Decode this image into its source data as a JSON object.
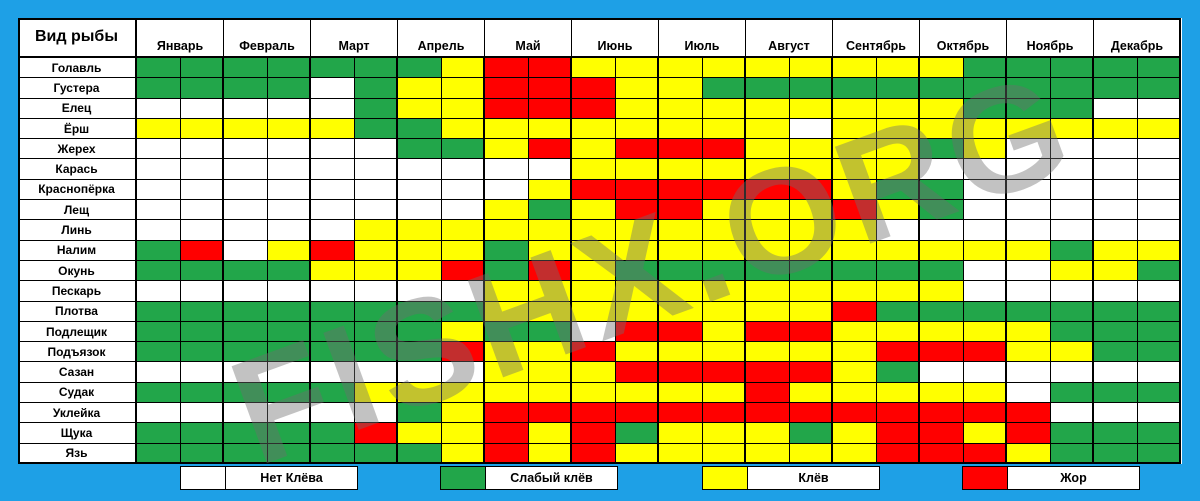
{
  "header": "Вид рыбы",
  "months": [
    "Январь",
    "Февраль",
    "Март",
    "Апрель",
    "Май",
    "Июнь",
    "Июль",
    "Август",
    "Сентябрь",
    "Октябрь",
    "Ноябрь",
    "Декабрь"
  ],
  "watermark": "FISHX.ORG",
  "legend": [
    {
      "label": "Нет Клёва",
      "color": "#ffffff"
    },
    {
      "label": "Слабый клёв",
      "color": "#22a64a"
    },
    {
      "label": "Клёв",
      "color": "#ffff00"
    },
    {
      "label": "Жор",
      "color": "#ff0000"
    }
  ],
  "chart_data": {
    "type": "heatmap",
    "columns": [
      "Январь",
      "Январь",
      "Февраль",
      "Февраль",
      "Март",
      "Март",
      "Апрель",
      "Апрель",
      "Май",
      "Май",
      "Июнь",
      "Июнь",
      "Июль",
      "Июль",
      "Август",
      "Август",
      "Сентябрь",
      "Сентябрь",
      "Октябрь",
      "Октябрь",
      "Ноябрь",
      "Ноябрь",
      "Декабрь",
      "Декабрь"
    ],
    "levels": [
      "Нет Клёва",
      "Слабый клёв",
      "Клёв",
      "Жор"
    ],
    "rows": [
      {
        "name": "Голавль",
        "values": [
          1,
          1,
          1,
          1,
          1,
          1,
          1,
          2,
          3,
          3,
          2,
          2,
          2,
          2,
          2,
          2,
          2,
          2,
          2,
          1,
          1,
          1,
          1,
          1
        ]
      },
      {
        "name": "Густера",
        "values": [
          1,
          1,
          1,
          1,
          0,
          1,
          2,
          2,
          3,
          3,
          3,
          2,
          2,
          1,
          1,
          1,
          1,
          1,
          1,
          1,
          1,
          1,
          1,
          1
        ]
      },
      {
        "name": "Елец",
        "values": [
          0,
          0,
          0,
          0,
          0,
          1,
          2,
          2,
          3,
          3,
          3,
          2,
          2,
          2,
          2,
          2,
          2,
          2,
          2,
          1,
          1,
          1,
          0,
          0
        ]
      },
      {
        "name": "Ёрш",
        "values": [
          2,
          2,
          2,
          2,
          2,
          1,
          1,
          2,
          2,
          2,
          2,
          2,
          2,
          2,
          2,
          0,
          2,
          2,
          2,
          2,
          2,
          2,
          2,
          2
        ]
      },
      {
        "name": "Жерех",
        "values": [
          0,
          0,
          0,
          0,
          0,
          0,
          1,
          1,
          2,
          3,
          2,
          3,
          3,
          3,
          2,
          2,
          2,
          2,
          1,
          2,
          0,
          0,
          0,
          0
        ]
      },
      {
        "name": "Карась",
        "values": [
          0,
          0,
          0,
          0,
          0,
          0,
          0,
          0,
          0,
          0,
          2,
          2,
          2,
          2,
          2,
          2,
          2,
          2,
          0,
          0,
          0,
          0,
          0,
          0
        ]
      },
      {
        "name": "Краснопёрка",
        "values": [
          0,
          0,
          0,
          0,
          0,
          0,
          0,
          0,
          0,
          2,
          3,
          3,
          3,
          3,
          3,
          3,
          2,
          1,
          1,
          0,
          0,
          0,
          0,
          0
        ]
      },
      {
        "name": "Лещ",
        "values": [
          0,
          0,
          0,
          0,
          0,
          0,
          0,
          0,
          2,
          1,
          2,
          3,
          3,
          2,
          2,
          2,
          3,
          2,
          1,
          0,
          0,
          0,
          0,
          0
        ]
      },
      {
        "name": "Линь",
        "values": [
          0,
          0,
          0,
          0,
          0,
          2,
          2,
          2,
          2,
          2,
          2,
          2,
          2,
          2,
          2,
          2,
          2,
          0,
          0,
          0,
          0,
          0,
          0,
          0
        ]
      },
      {
        "name": "Налим",
        "values": [
          1,
          3,
          0,
          2,
          3,
          2,
          2,
          2,
          1,
          2,
          2,
          2,
          2,
          2,
          2,
          2,
          2,
          2,
          2,
          2,
          2,
          1,
          2,
          2
        ]
      },
      {
        "name": "Окунь",
        "values": [
          1,
          1,
          1,
          1,
          2,
          2,
          2,
          3,
          1,
          3,
          2,
          1,
          1,
          1,
          1,
          1,
          1,
          1,
          1,
          0,
          0,
          2,
          2,
          1
        ]
      },
      {
        "name": "Пескарь",
        "values": [
          0,
          0,
          0,
          0,
          0,
          0,
          0,
          0,
          2,
          2,
          2,
          2,
          2,
          2,
          2,
          2,
          2,
          2,
          2,
          0,
          0,
          0,
          0,
          0
        ]
      },
      {
        "name": "Плотва",
        "values": [
          1,
          1,
          1,
          1,
          1,
          1,
          1,
          1,
          2,
          2,
          2,
          2,
          2,
          2,
          2,
          2,
          3,
          1,
          1,
          1,
          1,
          1,
          1,
          1
        ]
      },
      {
        "name": "Подлещик",
        "values": [
          1,
          1,
          1,
          1,
          1,
          1,
          1,
          2,
          1,
          1,
          0,
          3,
          3,
          2,
          3,
          3,
          2,
          2,
          2,
          2,
          2,
          1,
          1,
          1
        ]
      },
      {
        "name": "Подъязок",
        "values": [
          1,
          1,
          1,
          1,
          1,
          1,
          1,
          3,
          2,
          2,
          3,
          2,
          2,
          2,
          2,
          2,
          2,
          3,
          3,
          3,
          2,
          2,
          1,
          1
        ]
      },
      {
        "name": "Сазан",
        "values": [
          0,
          0,
          0,
          0,
          0,
          0,
          0,
          0,
          2,
          2,
          2,
          3,
          3,
          3,
          3,
          3,
          2,
          1,
          0,
          0,
          0,
          0,
          0,
          0
        ]
      },
      {
        "name": "Судак",
        "values": [
          1,
          1,
          1,
          1,
          1,
          2,
          2,
          2,
          2,
          2,
          2,
          2,
          2,
          2,
          3,
          2,
          2,
          2,
          2,
          2,
          0,
          1,
          1,
          1
        ]
      },
      {
        "name": "Уклейка",
        "values": [
          0,
          0,
          0,
          0,
          0,
          0,
          1,
          2,
          3,
          3,
          3,
          3,
          3,
          3,
          3,
          3,
          3,
          3,
          3,
          3,
          3,
          0,
          0,
          0
        ]
      },
      {
        "name": "Щука",
        "values": [
          1,
          1,
          1,
          1,
          1,
          3,
          2,
          2,
          3,
          2,
          3,
          1,
          2,
          2,
          2,
          1,
          2,
          3,
          3,
          2,
          3,
          1,
          1,
          1
        ]
      },
      {
        "name": "Язь",
        "values": [
          1,
          1,
          1,
          1,
          1,
          1,
          1,
          2,
          3,
          2,
          3,
          2,
          2,
          2,
          2,
          2,
          2,
          3,
          3,
          3,
          2,
          1,
          1,
          1
        ]
      }
    ]
  }
}
